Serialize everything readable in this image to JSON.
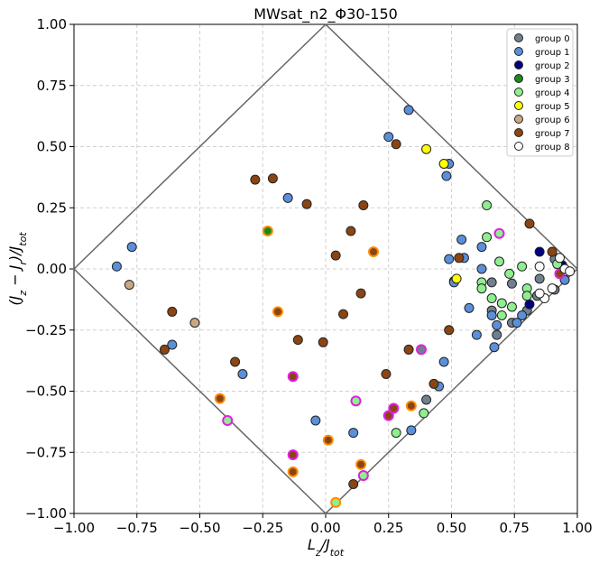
{
  "chart_data": {
    "type": "scatter",
    "title": "MWsat_n2_Φ30-150",
    "xlabel": [
      {
        "text": "L"
      },
      {
        "text": "z",
        "sub": true
      },
      {
        "text": "/J"
      },
      {
        "text": "tot",
        "sub": true
      }
    ],
    "ylabel": [
      {
        "text": "(J"
      },
      {
        "text": "z",
        "sub": true
      },
      {
        "text": " − J"
      },
      {
        "text": "r",
        "sub": true
      },
      {
        "text": ")/J"
      },
      {
        "text": "tot",
        "sub": true
      }
    ],
    "xlim": [
      -1,
      1
    ],
    "ylim": [
      -1,
      1
    ],
    "xticks": [
      {
        "value": -1,
        "label": "−1.00"
      },
      {
        "value": -0.75,
        "label": "−0.75"
      },
      {
        "value": -0.5,
        "label": "−0.50"
      },
      {
        "value": -0.25,
        "label": "−0.25"
      },
      {
        "value": 0,
        "label": "0.00"
      },
      {
        "value": 0.25,
        "label": "0.25"
      },
      {
        "value": 0.5,
        "label": "0.50"
      },
      {
        "value": 0.75,
        "label": "0.75"
      },
      {
        "value": 1,
        "label": "1.00"
      }
    ],
    "yticks": [
      {
        "value": -1,
        "label": "−1.00"
      },
      {
        "value": -0.75,
        "label": "−0.75"
      },
      {
        "value": -0.5,
        "label": "−0.50"
      },
      {
        "value": -0.25,
        "label": "−0.25"
      },
      {
        "value": 0,
        "label": "0.00"
      },
      {
        "value": 0.25,
        "label": "0.25"
      },
      {
        "value": 0.5,
        "label": "0.50"
      },
      {
        "value": 0.75,
        "label": "0.75"
      },
      {
        "value": 1,
        "label": "1.00"
      }
    ],
    "grid": true,
    "legend": "upper right",
    "edgecolor": "#222222",
    "series": [
      {
        "name": "group 0",
        "color": "#708090",
        "x": [
          0.4,
          0.66,
          0.68,
          0.74,
          0.74,
          0.8,
          0.84,
          0.85,
          0.91,
          0.66,
          0.51,
          0.91,
          0.38
        ],
        "y": [
          -0.535,
          -0.17,
          -0.27,
          -0.06,
          -0.22,
          -0.17,
          -0.11,
          -0.04,
          -0.085,
          -0.055,
          -0.05,
          0.04,
          -0.33
        ],
        "edgecolors": [
          "#222222",
          "#222222",
          "#222222",
          "#222222",
          "#222222",
          "#222222",
          "#222222",
          "#222222",
          "#222222",
          "#222222",
          "#222222",
          "#222222",
          "#e020e0"
        ]
      },
      {
        "name": "group 1",
        "color": "#5b8fd9",
        "x": [
          0.33,
          0.25,
          0.49,
          0.48,
          -0.15,
          -0.77,
          -0.83,
          -0.61,
          -0.33,
          -0.04,
          0.11,
          0.34,
          0.47,
          0.45,
          0.49,
          0.54,
          0.55,
          0.51,
          0.57,
          0.6,
          0.62,
          0.62,
          0.66,
          0.68,
          0.67,
          0.76,
          0.78,
          0.95
        ],
        "y": [
          0.65,
          0.54,
          0.43,
          0.38,
          0.29,
          0.09,
          0.01,
          -0.31,
          -0.43,
          -0.62,
          -0.67,
          -0.66,
          -0.38,
          -0.48,
          0.04,
          0.12,
          0.045,
          -0.055,
          -0.16,
          -0.27,
          0.09,
          0.0,
          -0.19,
          -0.23,
          -0.32,
          -0.22,
          -0.19,
          -0.045
        ]
      },
      {
        "name": "group 2",
        "color": "#000080",
        "x": [
          0.85,
          0.81,
          0.94
        ],
        "y": [
          0.07,
          -0.145,
          0.015
        ]
      },
      {
        "name": "group 3",
        "color": "#1a8a1a",
        "x": [
          -0.23
        ],
        "y": [
          0.155
        ],
        "edgecolors": [
          "#ff8c00"
        ]
      },
      {
        "name": "group 4",
        "color": "#90ee90",
        "x": [
          0.64,
          0.64,
          0.69,
          0.62,
          0.62,
          0.73,
          0.74,
          0.7,
          0.66,
          0.7,
          0.78,
          0.8,
          0.8,
          0.92,
          0.39,
          0.28,
          0.04,
          -0.39,
          0.12,
          0.15,
          0.69
        ],
        "y": [
          0.26,
          0.13,
          0.03,
          -0.055,
          -0.08,
          -0.02,
          -0.155,
          -0.14,
          -0.12,
          -0.19,
          0.01,
          -0.08,
          -0.11,
          0.02,
          -0.59,
          -0.67,
          -0.955,
          -0.62,
          -0.54,
          -0.845,
          0.145
        ],
        "edgecolors": [
          "#222222",
          "#222222",
          "#222222",
          "#222222",
          "#222222",
          "#222222",
          "#222222",
          "#222222",
          "#222222",
          "#222222",
          "#222222",
          "#222222",
          "#222222",
          "#222222",
          "#222222",
          "#222222",
          "#ff8c00",
          "#e020e0",
          "#e020e0",
          "#e020e0",
          "#e020e0"
        ]
      },
      {
        "name": "group 5",
        "color": "#ffff00",
        "x": [
          0.4,
          0.47,
          0.52
        ],
        "y": [
          0.49,
          0.43,
          -0.04
        ]
      },
      {
        "name": "group 6",
        "color": "#c8a882",
        "x": [
          -0.78,
          -0.52
        ],
        "y": [
          -0.065,
          -0.22
        ]
      },
      {
        "name": "group 7",
        "color": "#8b4513",
        "x": [
          -0.28,
          -0.21,
          -0.075,
          0.15,
          0.28,
          0.1,
          0.04,
          0.19,
          0.14,
          0.07,
          -0.01,
          -0.19,
          -0.11,
          -0.61,
          -0.64,
          -0.36,
          -0.42,
          0.24,
          0.33,
          0.49,
          0.43,
          0.34,
          0.01,
          0.14,
          0.11,
          -0.13,
          0.53,
          0.81,
          0.9,
          -0.13,
          -0.13,
          0.25,
          0.27,
          0.93
        ],
        "y": [
          0.365,
          0.37,
          0.265,
          0.26,
          0.51,
          0.155,
          0.055,
          0.07,
          -0.1,
          -0.185,
          -0.3,
          -0.175,
          -0.29,
          -0.175,
          -0.33,
          -0.38,
          -0.53,
          -0.43,
          -0.33,
          -0.25,
          -0.47,
          -0.56,
          -0.7,
          -0.8,
          -0.88,
          -0.83,
          0.045,
          0.185,
          0.07,
          -0.44,
          -0.76,
          -0.6,
          -0.57,
          -0.02
        ],
        "edgecolors": [
          "#222222",
          "#222222",
          "#222222",
          "#222222",
          "#222222",
          "#222222",
          "#222222",
          "#ff8c00",
          "#222222",
          "#222222",
          "#222222",
          "#ff8c00",
          "#222222",
          "#222222",
          "#222222",
          "#222222",
          "#ff8c00",
          "#222222",
          "#222222",
          "#222222",
          "#222222",
          "#ff8c00",
          "#ff8c00",
          "#ff8c00",
          "#222222",
          "#ff8c00",
          "#222222",
          "#222222",
          "#222222",
          "#e020e0",
          "#e020e0",
          "#e020e0",
          "#e020e0",
          "#e020e0"
        ]
      },
      {
        "name": "group 8",
        "color": "#ffffff",
        "x": [
          0.85,
          0.9,
          0.87,
          0.85,
          0.95,
          0.97,
          0.93
        ],
        "y": [
          0.01,
          -0.08,
          -0.12,
          -0.1,
          0.0,
          -0.01,
          0.045
        ]
      }
    ]
  }
}
